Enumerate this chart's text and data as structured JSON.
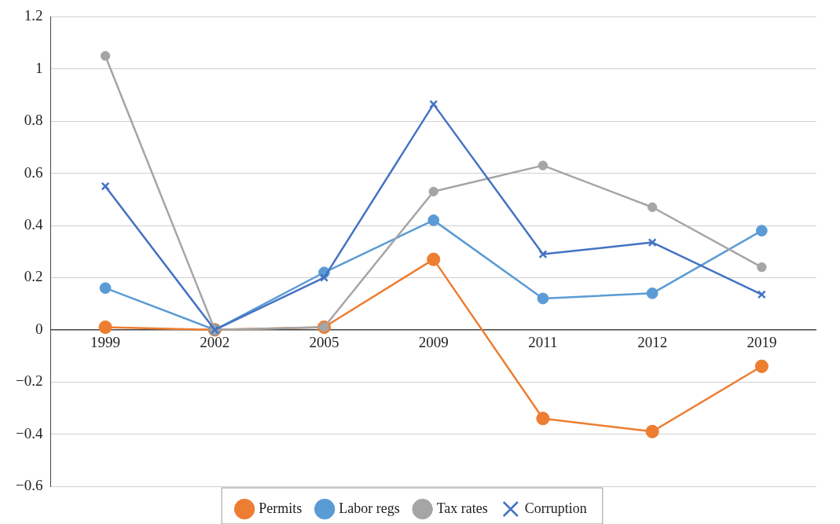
{
  "chart_data": {
    "type": "line",
    "categories": [
      "1999",
      "2002",
      "2005",
      "2009",
      "2011",
      "2012",
      "2019"
    ],
    "series": [
      {
        "name": "Permits",
        "color": "#ed7d31",
        "marker": "circle",
        "values": [
          0.01,
          0,
          0.01,
          0.27,
          -0.34,
          -0.39,
          -0.14
        ]
      },
      {
        "name": "Labor regs",
        "color": "#5b9bd5",
        "marker": "circle",
        "values": [
          0.16,
          0,
          0.22,
          0.42,
          0.12,
          0.14,
          0.38
        ]
      },
      {
        "name": "Tax rates",
        "color": "#a5a5a5",
        "marker": "circle",
        "values": [
          1.05,
          0,
          0.01,
          0.53,
          0.63,
          0.47,
          0.24
        ]
      },
      {
        "name": "Corruption",
        "color": "#4472c4",
        "marker": "cross",
        "values": [
          0.55,
          0,
          0.2,
          0.865,
          0.29,
          0.335,
          0.135
        ]
      }
    ],
    "ylim": [
      -0.6,
      1.2
    ],
    "yticks": [
      -0.6,
      -0.4,
      -0.2,
      0,
      0.2,
      0.4,
      0.6,
      0.8,
      1,
      1.2
    ],
    "grid": "y",
    "legend": "bottom",
    "line_style": "solid"
  }
}
